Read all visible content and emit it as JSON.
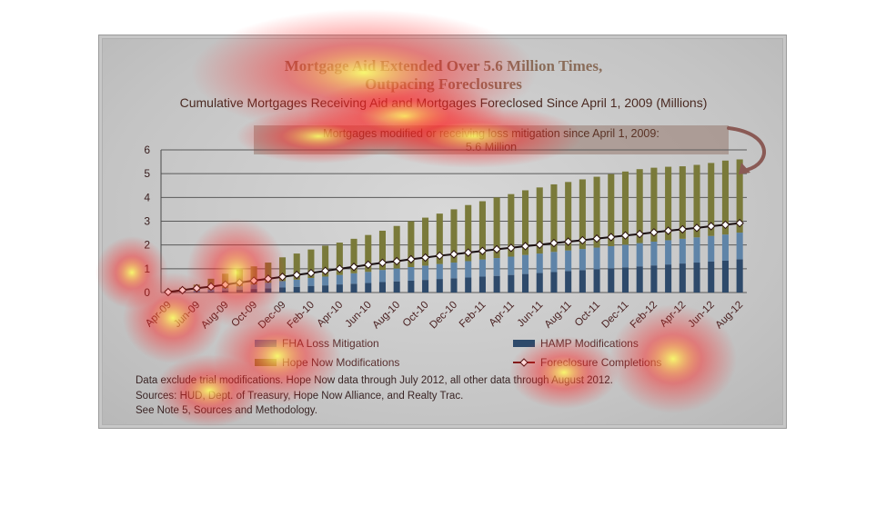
{
  "chart_data": {
    "type": "bar",
    "title_line1": "Mortgage Aid Extended Over 5.6 Million Times,",
    "title_line2": "Outpacing Foreclosures",
    "subtitle": "Cumulative Mortgages Receiving Aid and Mortgages Foreclosed Since April 1, 2009 (Millions)",
    "callout_line1": "Mortgages modified or receiving loss mitigation since April 1, 2009:",
    "callout_line2": "5.6 Million",
    "ylim": [
      0,
      6
    ],
    "yticks": [
      "0",
      "1",
      "2",
      "3",
      "4",
      "5",
      "6"
    ],
    "categories": [
      "Apr-09",
      "May-09",
      "Jun-09",
      "Jul-09",
      "Aug-09",
      "Sep-09",
      "Oct-09",
      "Nov-09",
      "Dec-09",
      "Jan-10",
      "Feb-10",
      "Mar-10",
      "Apr-10",
      "May-10",
      "Jun-10",
      "Jul-10",
      "Aug-10",
      "Sep-10",
      "Oct-10",
      "Nov-10",
      "Dec-10",
      "Jan-11",
      "Feb-11",
      "Mar-11",
      "Apr-11",
      "May-11",
      "Jun-11",
      "Jul-11",
      "Aug-11",
      "Sep-11",
      "Oct-11",
      "Nov-11",
      "Dec-11",
      "Jan-12",
      "Feb-12",
      "Mar-12",
      "Apr-12",
      "May-12",
      "Jun-12",
      "Jul-12",
      "Aug-12"
    ],
    "xtick_labels": [
      "Apr-09",
      "Jun-09",
      "Aug-09",
      "Oct-09",
      "Dec-09",
      "Feb-10",
      "Apr-10",
      "Jun-10",
      "Aug-10",
      "Oct-10",
      "Dec-10",
      "Feb-11",
      "Apr-11",
      "Jun-11",
      "Aug-11",
      "Oct-11",
      "Dec-11",
      "Feb-12",
      "Apr-12",
      "Jun-12",
      "Aug-12"
    ],
    "series": [
      {
        "name": "HAMP Modifications",
        "kind": "bar",
        "color": "#2e4a6b",
        "values": [
          0.01,
          0.02,
          0.03,
          0.05,
          0.08,
          0.12,
          0.15,
          0.18,
          0.21,
          0.24,
          0.28,
          0.3,
          0.34,
          0.37,
          0.4,
          0.44,
          0.47,
          0.5,
          0.53,
          0.57,
          0.6,
          0.63,
          0.67,
          0.7,
          0.74,
          0.78,
          0.82,
          0.86,
          0.9,
          0.94,
          0.98,
          1.02,
          1.06,
          1.1,
          1.14,
          1.18,
          1.22,
          1.26,
          1.3,
          1.34,
          1.4
        ]
      },
      {
        "name": "FHA Loss Mitigation",
        "kind": "bar",
        "color": "#5f84a8",
        "values": [
          0.01,
          0.03,
          0.05,
          0.08,
          0.11,
          0.15,
          0.19,
          0.23,
          0.27,
          0.3,
          0.33,
          0.37,
          0.4,
          0.44,
          0.47,
          0.51,
          0.54,
          0.57,
          0.6,
          0.63,
          0.66,
          0.69,
          0.72,
          0.75,
          0.77,
          0.8,
          0.82,
          0.85,
          0.87,
          0.89,
          0.91,
          0.93,
          0.95,
          0.98,
          1.0,
          1.02,
          1.04,
          1.06,
          1.08,
          1.1,
          1.12
        ]
      },
      {
        "name": "Hope Now Modifications",
        "kind": "bar",
        "color": "#7a7a3a",
        "values": [
          0.08,
          0.15,
          0.25,
          0.45,
          0.6,
          0.7,
          0.76,
          0.85,
          1.0,
          1.1,
          1.2,
          1.3,
          1.36,
          1.45,
          1.55,
          1.65,
          1.79,
          1.93,
          2.02,
          2.12,
          2.24,
          2.36,
          2.45,
          2.55,
          2.63,
          2.72,
          2.78,
          2.84,
          2.88,
          2.93,
          2.98,
          3.03,
          3.08,
          3.11,
          3.11,
          3.09,
          3.05,
          3.05,
          3.07,
          3.11,
          3.08
        ]
      },
      {
        "name": "Foreclosure Completions",
        "kind": "line",
        "color": "#7a1a1a",
        "values": [
          0.02,
          0.1,
          0.18,
          0.25,
          0.33,
          0.42,
          0.5,
          0.58,
          0.66,
          0.74,
          0.82,
          0.91,
          1.0,
          1.08,
          1.17,
          1.25,
          1.32,
          1.4,
          1.47,
          1.55,
          1.61,
          1.68,
          1.75,
          1.82,
          1.88,
          1.95,
          2.01,
          2.08,
          2.14,
          2.2,
          2.27,
          2.33,
          2.4,
          2.46,
          2.53,
          2.6,
          2.66,
          2.72,
          2.79,
          2.85,
          2.92
        ]
      }
    ]
  },
  "legend": {
    "fha": "FHA Loss Mitigation",
    "hamp": "HAMP Modifications",
    "hope": "Hope Now Modifications",
    "foreclosure": "Foreclosure Completions"
  },
  "notes": {
    "line1": "Data exclude trial modifications. Hope Now data through July 2012, all other data through August 2012.",
    "line2": "Sources:  HUD, Dept. of Treasury, Hope Now Alliance, and Realty Trac.",
    "line3": "See Note 5, Sources and Methodology."
  },
  "colors": {
    "heat_hot": "#ffff60",
    "heat_warm": "#ff2020"
  }
}
